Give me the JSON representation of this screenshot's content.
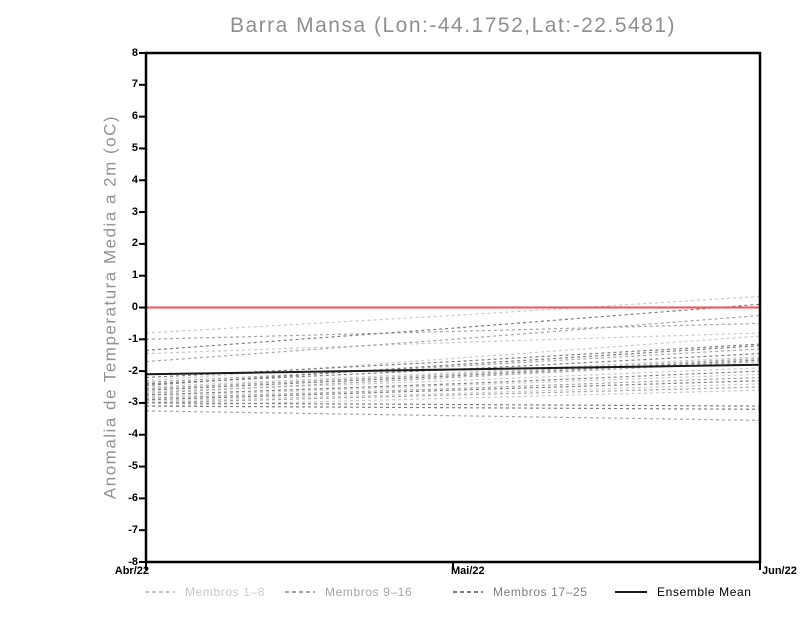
{
  "chart_data": {
    "type": "line",
    "title": "Barra Mansa (Lon:-44.1752,Lat:-22.5481)",
    "ylabel": "Anomalia de Temperatura Media a 2m (oC)",
    "xlabel": "",
    "categories": [
      "Abr/22",
      "Mai/22",
      "Jun/22"
    ],
    "ylim": [
      -8,
      8
    ],
    "ytick_step": 1,
    "yticks": [
      8,
      7,
      6,
      5,
      4,
      3,
      2,
      1,
      0,
      -1,
      -2,
      -3,
      -4,
      -5,
      -6,
      -7,
      -8
    ],
    "grid": false,
    "legend_position": "bottom",
    "zero_line": {
      "value": 0,
      "color": "#f25252"
    },
    "ensemble_mean": {
      "label": "Ensemble Mean",
      "color": "#1a1a1a",
      "values": [
        -2.1,
        -1.95,
        -1.8
      ]
    },
    "member_groups": [
      {
        "label": "Membros 1–8",
        "color": "#c9c9c9",
        "members": [
          [
            -0.8,
            -0.25,
            0.35
          ],
          [
            -1.45,
            -1.1,
            -0.8
          ],
          [
            -2.3,
            -1.6,
            -0.9
          ],
          [
            -2.5,
            -2.05,
            -1.55
          ],
          [
            -2.65,
            -2.3,
            -1.9
          ],
          [
            -2.8,
            -2.45,
            -2.1
          ],
          [
            -2.95,
            -2.7,
            -2.4
          ],
          [
            -3.1,
            -2.85,
            -2.6
          ]
        ]
      },
      {
        "label": "Membros 9–16",
        "color": "#a5a5a5",
        "members": [
          [
            -1.0,
            -0.75,
            -0.5
          ],
          [
            -1.7,
            -1.0,
            -0.25
          ],
          [
            -2.35,
            -1.85,
            -1.3
          ],
          [
            -2.55,
            -2.1,
            -1.6
          ],
          [
            -2.7,
            -2.2,
            -1.7
          ],
          [
            -2.85,
            -2.55,
            -2.2
          ],
          [
            -3.0,
            -2.75,
            -2.5
          ],
          [
            -3.25,
            -3.4,
            -3.55
          ]
        ]
      },
      {
        "label": "Membros 17–25",
        "color": "#7e7e7e",
        "members": [
          [
            -1.35,
            -0.65,
            0.1
          ],
          [
            -2.2,
            -1.7,
            -1.15
          ],
          [
            -2.4,
            -1.95,
            -1.45
          ],
          [
            -2.45,
            -1.8,
            -1.2
          ],
          [
            -2.6,
            -2.15,
            -1.65
          ],
          [
            -2.75,
            -2.4,
            -2.0
          ],
          [
            -2.9,
            -2.6,
            -2.3
          ],
          [
            -3.0,
            -3.05,
            -3.1
          ],
          [
            -3.1,
            -3.15,
            -3.2
          ]
        ]
      }
    ]
  },
  "layout_colors": {
    "frame": "#000000",
    "title_text": "#8f8f8f",
    "axis_text": "#000000"
  }
}
